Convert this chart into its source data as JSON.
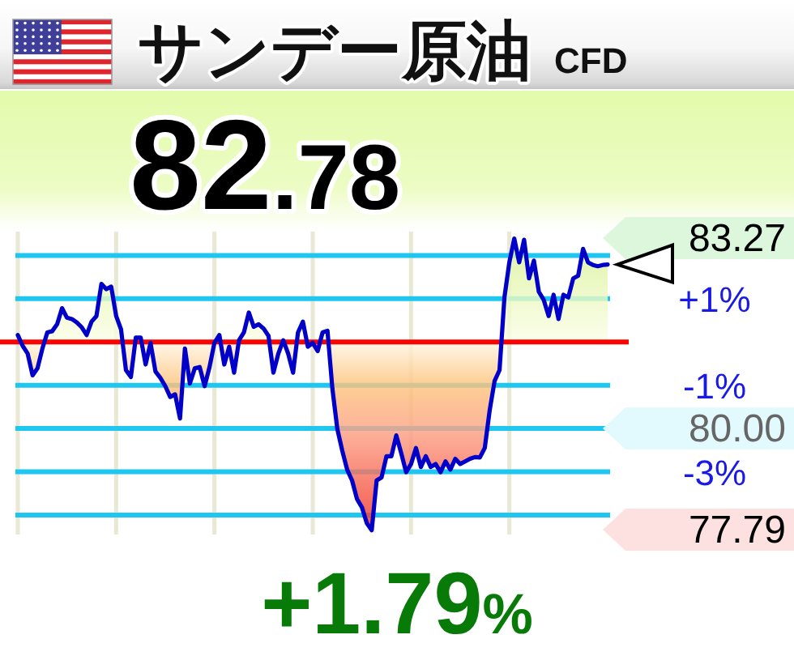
{
  "chart_data": {
    "type": "area",
    "title": "サンデー原油",
    "subtitle": "CFD",
    "categories": [
      null,
      null,
      null,
      null,
      null,
      null,
      null,
      null,
      null,
      null,
      null,
      null,
      null,
      null,
      null,
      null,
      null,
      null,
      null,
      null,
      null,
      null,
      null,
      null,
      null,
      null,
      null,
      null,
      null,
      null,
      null,
      null,
      null,
      null,
      null,
      null,
      null,
      null,
      null,
      null,
      null,
      null,
      null,
      null,
      null,
      null,
      null,
      null,
      null,
      null,
      null,
      null,
      null,
      null,
      null,
      null,
      null,
      null,
      null,
      null,
      null,
      null,
      null,
      null,
      null,
      null,
      null,
      null,
      null,
      null,
      null,
      null,
      null,
      null,
      null,
      null,
      null,
      null,
      null,
      null,
      null,
      null,
      null,
      null,
      null,
      null,
      null,
      null,
      null,
      null,
      null,
      null,
      null,
      null,
      null,
      null,
      null,
      null,
      null,
      null,
      null,
      null,
      null,
      null,
      null,
      null,
      null,
      null,
      null,
      null,
      null,
      null,
      null,
      null,
      null,
      null,
      null,
      null,
      null,
      null,
      null
    ],
    "values": [
      0.16,
      -0.09,
      -0.27,
      -0.77,
      -0.61,
      -0.15,
      0.22,
      0.25,
      0.41,
      0.78,
      0.56,
      0.53,
      0.45,
      0.34,
      0.16,
      0.47,
      0.6,
      1.34,
      1.22,
      1.28,
      0.6,
      0.29,
      -0.65,
      -0.81,
      0.1,
      0.1,
      -0.52,
      -0.02,
      -0.68,
      -0.83,
      -1.02,
      -1.27,
      -1.21,
      -1.77,
      -0.15,
      -0.96,
      -0.61,
      -0.58,
      -1.02,
      -0.58,
      -0.02,
      0.16,
      -0.52,
      -0.11,
      -0.71,
      0.04,
      0.22,
      0.68,
      0.35,
      0.41,
      0.31,
      0.14,
      -0.71,
      -0.27,
      0.04,
      -0.27,
      -0.71,
      0.22,
      0.47,
      -0.11,
      -0.02,
      -0.21,
      0.22,
      0.26,
      -1.08,
      -2.01,
      -2.51,
      -2.95,
      -3.2,
      -3.63,
      -3.82,
      -4.19,
      -4.35,
      -3.2,
      -3.13,
      -2.64,
      -2.64,
      -2.16,
      -2.57,
      -3.01,
      -2.82,
      -2.45,
      -2.89,
      -2.64,
      -2.89,
      -2.82,
      -3.01,
      -2.76,
      -2.95,
      -2.7,
      -2.82,
      -2.76,
      -2.7,
      -2.66,
      -2.67,
      -2.45,
      -1.58,
      -0.9,
      -0.65,
      1.03,
      1.84,
      2.39,
      1.84,
      2.36,
      1.47,
      1.88,
      1.16,
      0.97,
      0.6,
      1.09,
      0.53,
      1.09,
      1.03,
      1.47,
      1.53,
      2.15,
      1.84,
      1.78,
      1.75,
      1.78,
      1.79
    ],
    "color": "#0000c8",
    "ylim": [
      -4.45,
      2.55
    ],
    "yticks": [
      {
        "value": 2,
        "label": null
      },
      {
        "value": 1,
        "label": "+1%"
      },
      {
        "value": -1,
        "label": "-1%"
      },
      {
        "value": -2,
        "label": null
      },
      {
        "value": -3,
        "label": "-3%"
      },
      {
        "value": -4,
        "label": null
      }
    ],
    "tick_labels": "y",
    "grid": true,
    "ref_lines": [
      {
        "axis": "y",
        "value": 0,
        "color": "#ff0000"
      }
    ],
    "annotations": [
      "82.78",
      "83.27",
      "80.00",
      "77.79",
      "+1.79%"
    ]
  }
}
